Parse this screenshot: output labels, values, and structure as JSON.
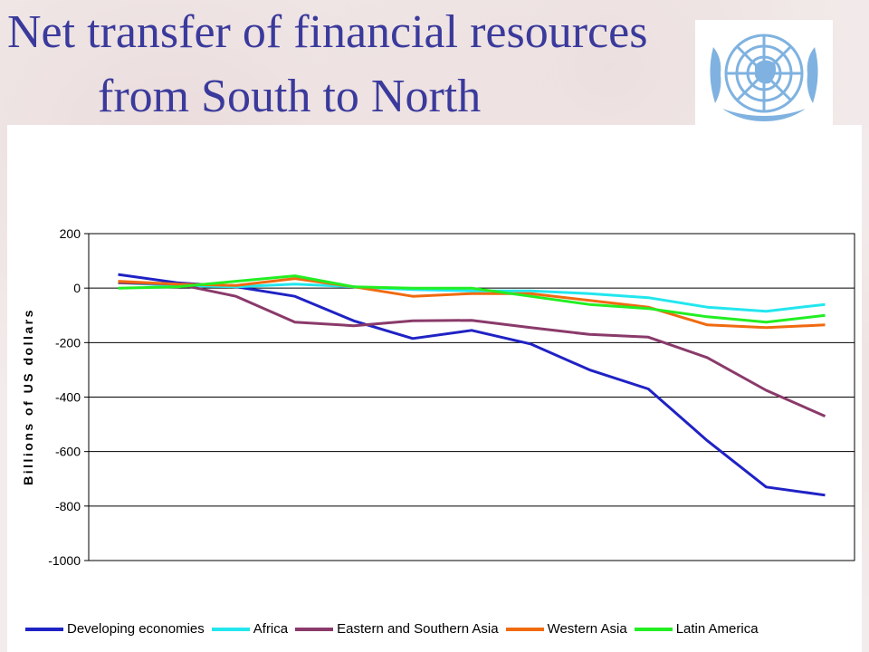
{
  "title": {
    "line1": "Net transfer of financial resources",
    "line2": "from South to North"
  },
  "logo_icon": "un-emblem-icon",
  "chart_data": {
    "type": "line",
    "ylabel": "Billions of US dollars",
    "xlabel": "",
    "ylim": [
      -1000,
      200
    ],
    "yticks": [
      200,
      0,
      -200,
      -400,
      -600,
      -800,
      -1000
    ],
    "grid": "horizontal",
    "legend": "bottom",
    "x": [
      1,
      2,
      3,
      4,
      5,
      6,
      7,
      8,
      9,
      10,
      11,
      12,
      13
    ],
    "series": [
      {
        "name": "Developing economies",
        "color": "#1f22c4",
        "values": [
          50,
          20,
          5,
          -30,
          -120,
          -185,
          -155,
          -205,
          -300,
          -370,
          -560,
          -730,
          -760
        ]
      },
      {
        "name": "Africa",
        "color": "#22e6ee",
        "values": [
          20,
          10,
          5,
          15,
          5,
          -5,
          -10,
          -10,
          -20,
          -35,
          -70,
          -85,
          -60
        ]
      },
      {
        "name": "Eastern and Southern Asia",
        "color": "#8a3a6a",
        "values": [
          20,
          15,
          -30,
          -125,
          -138,
          -120,
          -118,
          -145,
          -170,
          -180,
          -255,
          -375,
          -470
        ]
      },
      {
        "name": "Western Asia",
        "color": "#f06a10",
        "values": [
          25,
          15,
          10,
          35,
          5,
          -30,
          -20,
          -20,
          -45,
          -70,
          -135,
          -145,
          -135
        ]
      },
      {
        "name": "Latin America",
        "color": "#22ee22",
        "values": [
          0,
          5,
          25,
          45,
          5,
          0,
          0,
          -30,
          -60,
          -75,
          -105,
          -125,
          -100
        ]
      }
    ]
  }
}
